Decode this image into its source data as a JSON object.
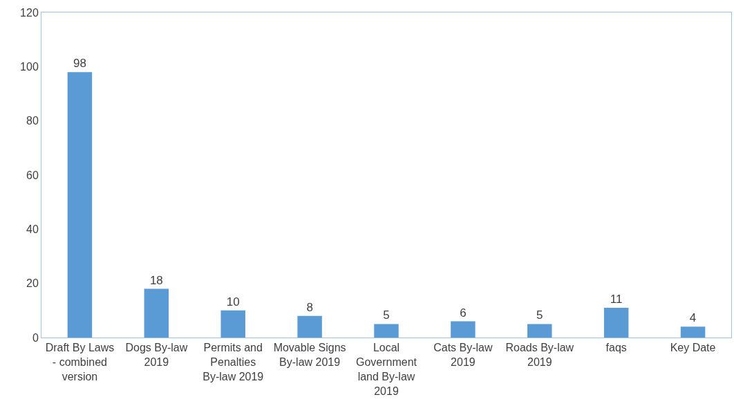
{
  "chart_data": {
    "type": "bar",
    "categories": [
      "Draft By Laws - combined version",
      "Dogs By-law 2019",
      "Permits and Penalties By-law 2019",
      "Movable Signs By-law 2019",
      "Local Government land By-law 2019",
      "Cats By-law 2019",
      "Roads By-law 2019",
      "faqs",
      "Key Date"
    ],
    "values": [
      98,
      18,
      10,
      8,
      5,
      6,
      5,
      11,
      4
    ],
    "color": "#5b9bd5",
    "ylim": [
      0,
      120
    ],
    "yticks": [
      0,
      20,
      40,
      60,
      80,
      100,
      120
    ],
    "data_labels": true
  }
}
